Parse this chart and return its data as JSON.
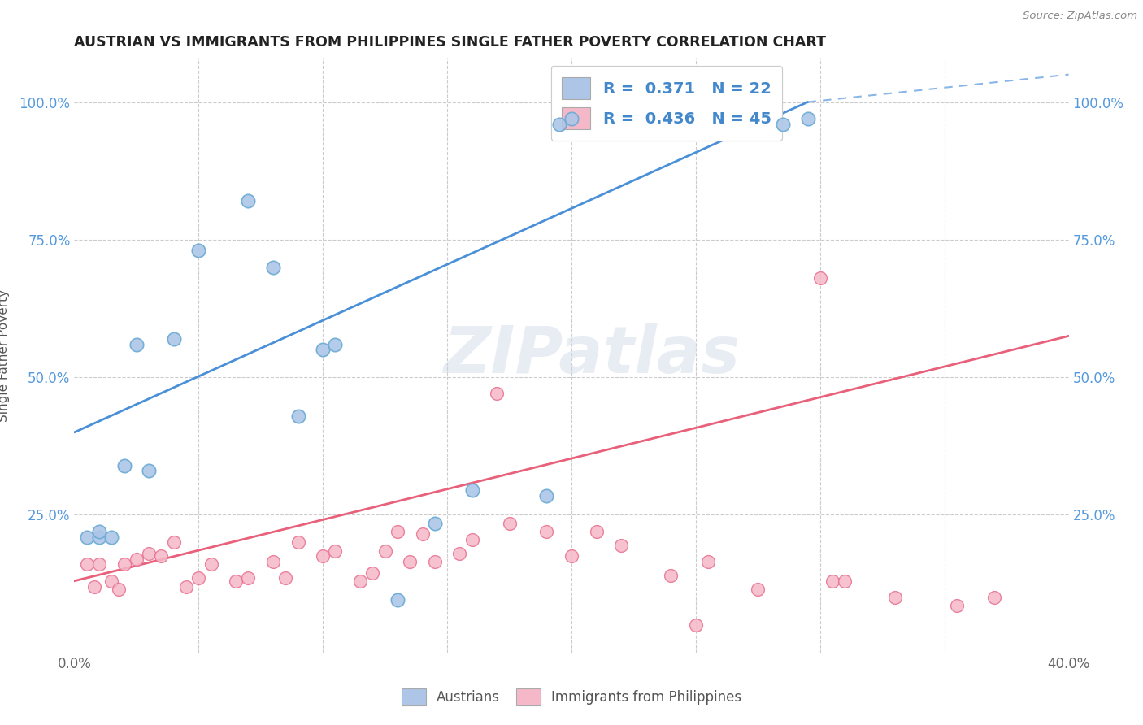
{
  "title": "AUSTRIAN VS IMMIGRANTS FROM PHILIPPINES SINGLE FATHER POVERTY CORRELATION CHART",
  "source": "Source: ZipAtlas.com",
  "ylabel": "Single Father Poverty",
  "x_min": 0.0,
  "x_max": 0.4,
  "y_min": 0.0,
  "y_max": 1.08,
  "y_ticks": [
    0.0,
    0.25,
    0.5,
    0.75,
    1.0
  ],
  "y_tick_labels": [
    "",
    "25.0%",
    "50.0%",
    "75.0%",
    "100.0%"
  ],
  "x_ticks": [
    0.0,
    0.05,
    0.1,
    0.15,
    0.2,
    0.25,
    0.3,
    0.35,
    0.4
  ],
  "x_tick_labels_show": [
    "0.0%",
    "",
    "",
    "",
    "",
    "",
    "",
    "",
    "40.0%"
  ],
  "color_austrians_fill": "#adc6e8",
  "color_austrians_edge": "#6aaad4",
  "color_philippines_fill": "#f5b8c8",
  "color_philippines_edge": "#e87090",
  "color_line_blue": "#4a90d9",
  "color_line_pink": "#e8607a",
  "watermark_color": "#cdd8e8",
  "austrians_x": [
    0.005,
    0.01,
    0.01,
    0.015,
    0.02,
    0.025,
    0.03,
    0.04,
    0.05,
    0.07,
    0.08,
    0.09,
    0.1,
    0.105,
    0.13,
    0.145,
    0.16,
    0.19,
    0.195,
    0.2,
    0.285,
    0.295
  ],
  "austrians_y": [
    0.21,
    0.21,
    0.22,
    0.21,
    0.34,
    0.56,
    0.33,
    0.57,
    0.73,
    0.82,
    0.7,
    0.43,
    0.55,
    0.56,
    0.095,
    0.235,
    0.295,
    0.285,
    0.96,
    0.97,
    0.96,
    0.97
  ],
  "philippines_x": [
    0.005,
    0.008,
    0.01,
    0.015,
    0.018,
    0.02,
    0.025,
    0.03,
    0.035,
    0.04,
    0.045,
    0.05,
    0.055,
    0.065,
    0.07,
    0.08,
    0.085,
    0.09,
    0.1,
    0.105,
    0.115,
    0.12,
    0.125,
    0.13,
    0.135,
    0.14,
    0.145,
    0.155,
    0.16,
    0.17,
    0.175,
    0.19,
    0.2,
    0.21,
    0.22,
    0.24,
    0.25,
    0.255,
    0.275,
    0.3,
    0.305,
    0.31,
    0.33,
    0.355,
    0.37
  ],
  "philippines_y": [
    0.16,
    0.12,
    0.16,
    0.13,
    0.115,
    0.16,
    0.17,
    0.18,
    0.175,
    0.2,
    0.12,
    0.135,
    0.16,
    0.13,
    0.135,
    0.165,
    0.135,
    0.2,
    0.175,
    0.185,
    0.13,
    0.145,
    0.185,
    0.22,
    0.165,
    0.215,
    0.165,
    0.18,
    0.205,
    0.47,
    0.235,
    0.22,
    0.175,
    0.22,
    0.195,
    0.14,
    0.05,
    0.165,
    0.115,
    0.68,
    0.13,
    0.13,
    0.1,
    0.085,
    0.1
  ],
  "aus_trend_x0": 0.0,
  "aus_trend_y0": 0.4,
  "aus_trend_x1": 0.295,
  "aus_trend_y1": 1.0,
  "aus_trend_dashed_x0": 0.295,
  "aus_trend_dashed_y0": 1.0,
  "aus_trend_dashed_x1": 0.4,
  "aus_trend_dashed_y1": 1.05,
  "phi_trend_x0": 0.0,
  "phi_trend_y0": 0.13,
  "phi_trend_x1": 0.4,
  "phi_trend_y1": 0.575
}
